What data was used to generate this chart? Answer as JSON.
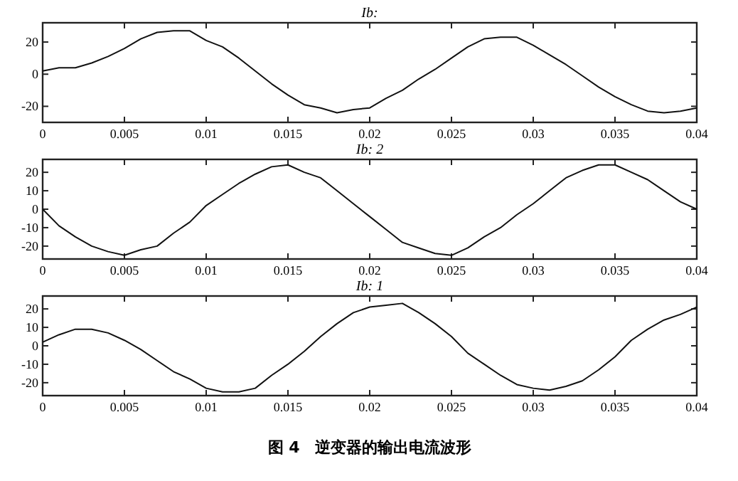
{
  "chart_data": [
    {
      "type": "line",
      "title": "Ib:",
      "xlim": [
        0,
        0.04
      ],
      "xticks": [
        0,
        0.005,
        0.01,
        0.015,
        0.02,
        0.025,
        0.03,
        0.035,
        0.04
      ],
      "ylim": [
        -30,
        32
      ],
      "yticks": [
        -20,
        0,
        20
      ],
      "grid": false,
      "marker": "none",
      "line_style": "solid",
      "series": [
        {
          "color": "#111111",
          "x": [
            0,
            0.001,
            0.002,
            0.003,
            0.004,
            0.005,
            0.006,
            0.007,
            0.008,
            0.009,
            0.01,
            0.011,
            0.012,
            0.013,
            0.014,
            0.015,
            0.016,
            0.017,
            0.018,
            0.019,
            0.02,
            0.021,
            0.022,
            0.023,
            0.024,
            0.025,
            0.026,
            0.027,
            0.028,
            0.029,
            0.03,
            0.031,
            0.032,
            0.033,
            0.034,
            0.035,
            0.036,
            0.037,
            0.038,
            0.039,
            0.04
          ],
          "values": [
            2,
            4,
            4,
            7,
            11,
            16,
            22,
            26,
            27,
            27,
            21,
            17,
            10,
            2,
            -6,
            -13,
            -19,
            -21,
            -24,
            -22,
            -21,
            -15,
            -10,
            -3,
            3,
            10,
            17,
            22,
            23,
            23,
            18,
            12,
            6,
            -1,
            -8,
            -14,
            -19,
            -23,
            -24,
            -23,
            -21
          ]
        }
      ]
    },
    {
      "type": "line",
      "title": "Ib: 2",
      "xlim": [
        0,
        0.04
      ],
      "xticks": [
        0,
        0.005,
        0.01,
        0.015,
        0.02,
        0.025,
        0.03,
        0.035,
        0.04
      ],
      "ylim": [
        -27,
        27
      ],
      "yticks": [
        -20,
        -10,
        0,
        10,
        20
      ],
      "grid": false,
      "marker": "none",
      "line_style": "solid",
      "series": [
        {
          "color": "#111111",
          "x": [
            0,
            0.001,
            0.002,
            0.003,
            0.004,
            0.005,
            0.006,
            0.007,
            0.008,
            0.009,
            0.01,
            0.011,
            0.012,
            0.013,
            0.014,
            0.015,
            0.016,
            0.017,
            0.018,
            0.019,
            0.02,
            0.021,
            0.022,
            0.023,
            0.024,
            0.025,
            0.026,
            0.027,
            0.028,
            0.029,
            0.03,
            0.031,
            0.032,
            0.033,
            0.034,
            0.035,
            0.036,
            0.037,
            0.038,
            0.039,
            0.04
          ],
          "values": [
            0,
            -9,
            -15,
            -20,
            -23,
            -25,
            -22,
            -20,
            -13,
            -7,
            2,
            8,
            14,
            19,
            23,
            24,
            20,
            17,
            10,
            3,
            -4,
            -11,
            -18,
            -21,
            -24,
            -25,
            -21,
            -15,
            -10,
            -3,
            3,
            10,
            17,
            21,
            24,
            24,
            20,
            16,
            10,
            4,
            0
          ]
        }
      ]
    },
    {
      "type": "line",
      "title": "Ib: 1",
      "xlim": [
        0,
        0.04
      ],
      "xticks": [
        0,
        0.005,
        0.01,
        0.015,
        0.02,
        0.025,
        0.03,
        0.035,
        0.04
      ],
      "ylim": [
        -27,
        27
      ],
      "yticks": [
        -20,
        -10,
        0,
        10,
        20
      ],
      "grid": false,
      "marker": "none",
      "line_style": "solid",
      "annotations": [
        "图 4　逆变器的输出电流波形"
      ],
      "series": [
        {
          "color": "#111111",
          "x": [
            0,
            0.001,
            0.002,
            0.003,
            0.004,
            0.005,
            0.006,
            0.007,
            0.008,
            0.009,
            0.01,
            0.011,
            0.012,
            0.013,
            0.014,
            0.015,
            0.016,
            0.017,
            0.018,
            0.019,
            0.02,
            0.021,
            0.022,
            0.023,
            0.024,
            0.025,
            0.026,
            0.027,
            0.028,
            0.029,
            0.03,
            0.031,
            0.032,
            0.033,
            0.034,
            0.035,
            0.036,
            0.037,
            0.038,
            0.039,
            0.04
          ],
          "values": [
            2,
            6,
            9,
            9,
            7,
            3,
            -2,
            -8,
            -14,
            -18,
            -23,
            -25,
            -25,
            -23,
            -16,
            -10,
            -3,
            5,
            12,
            18,
            21,
            22,
            23,
            18,
            12,
            5,
            -4,
            -10,
            -16,
            -21,
            -23,
            -24,
            -22,
            -19,
            -13,
            -6,
            3,
            9,
            14,
            17,
            21
          ]
        }
      ]
    }
  ]
}
